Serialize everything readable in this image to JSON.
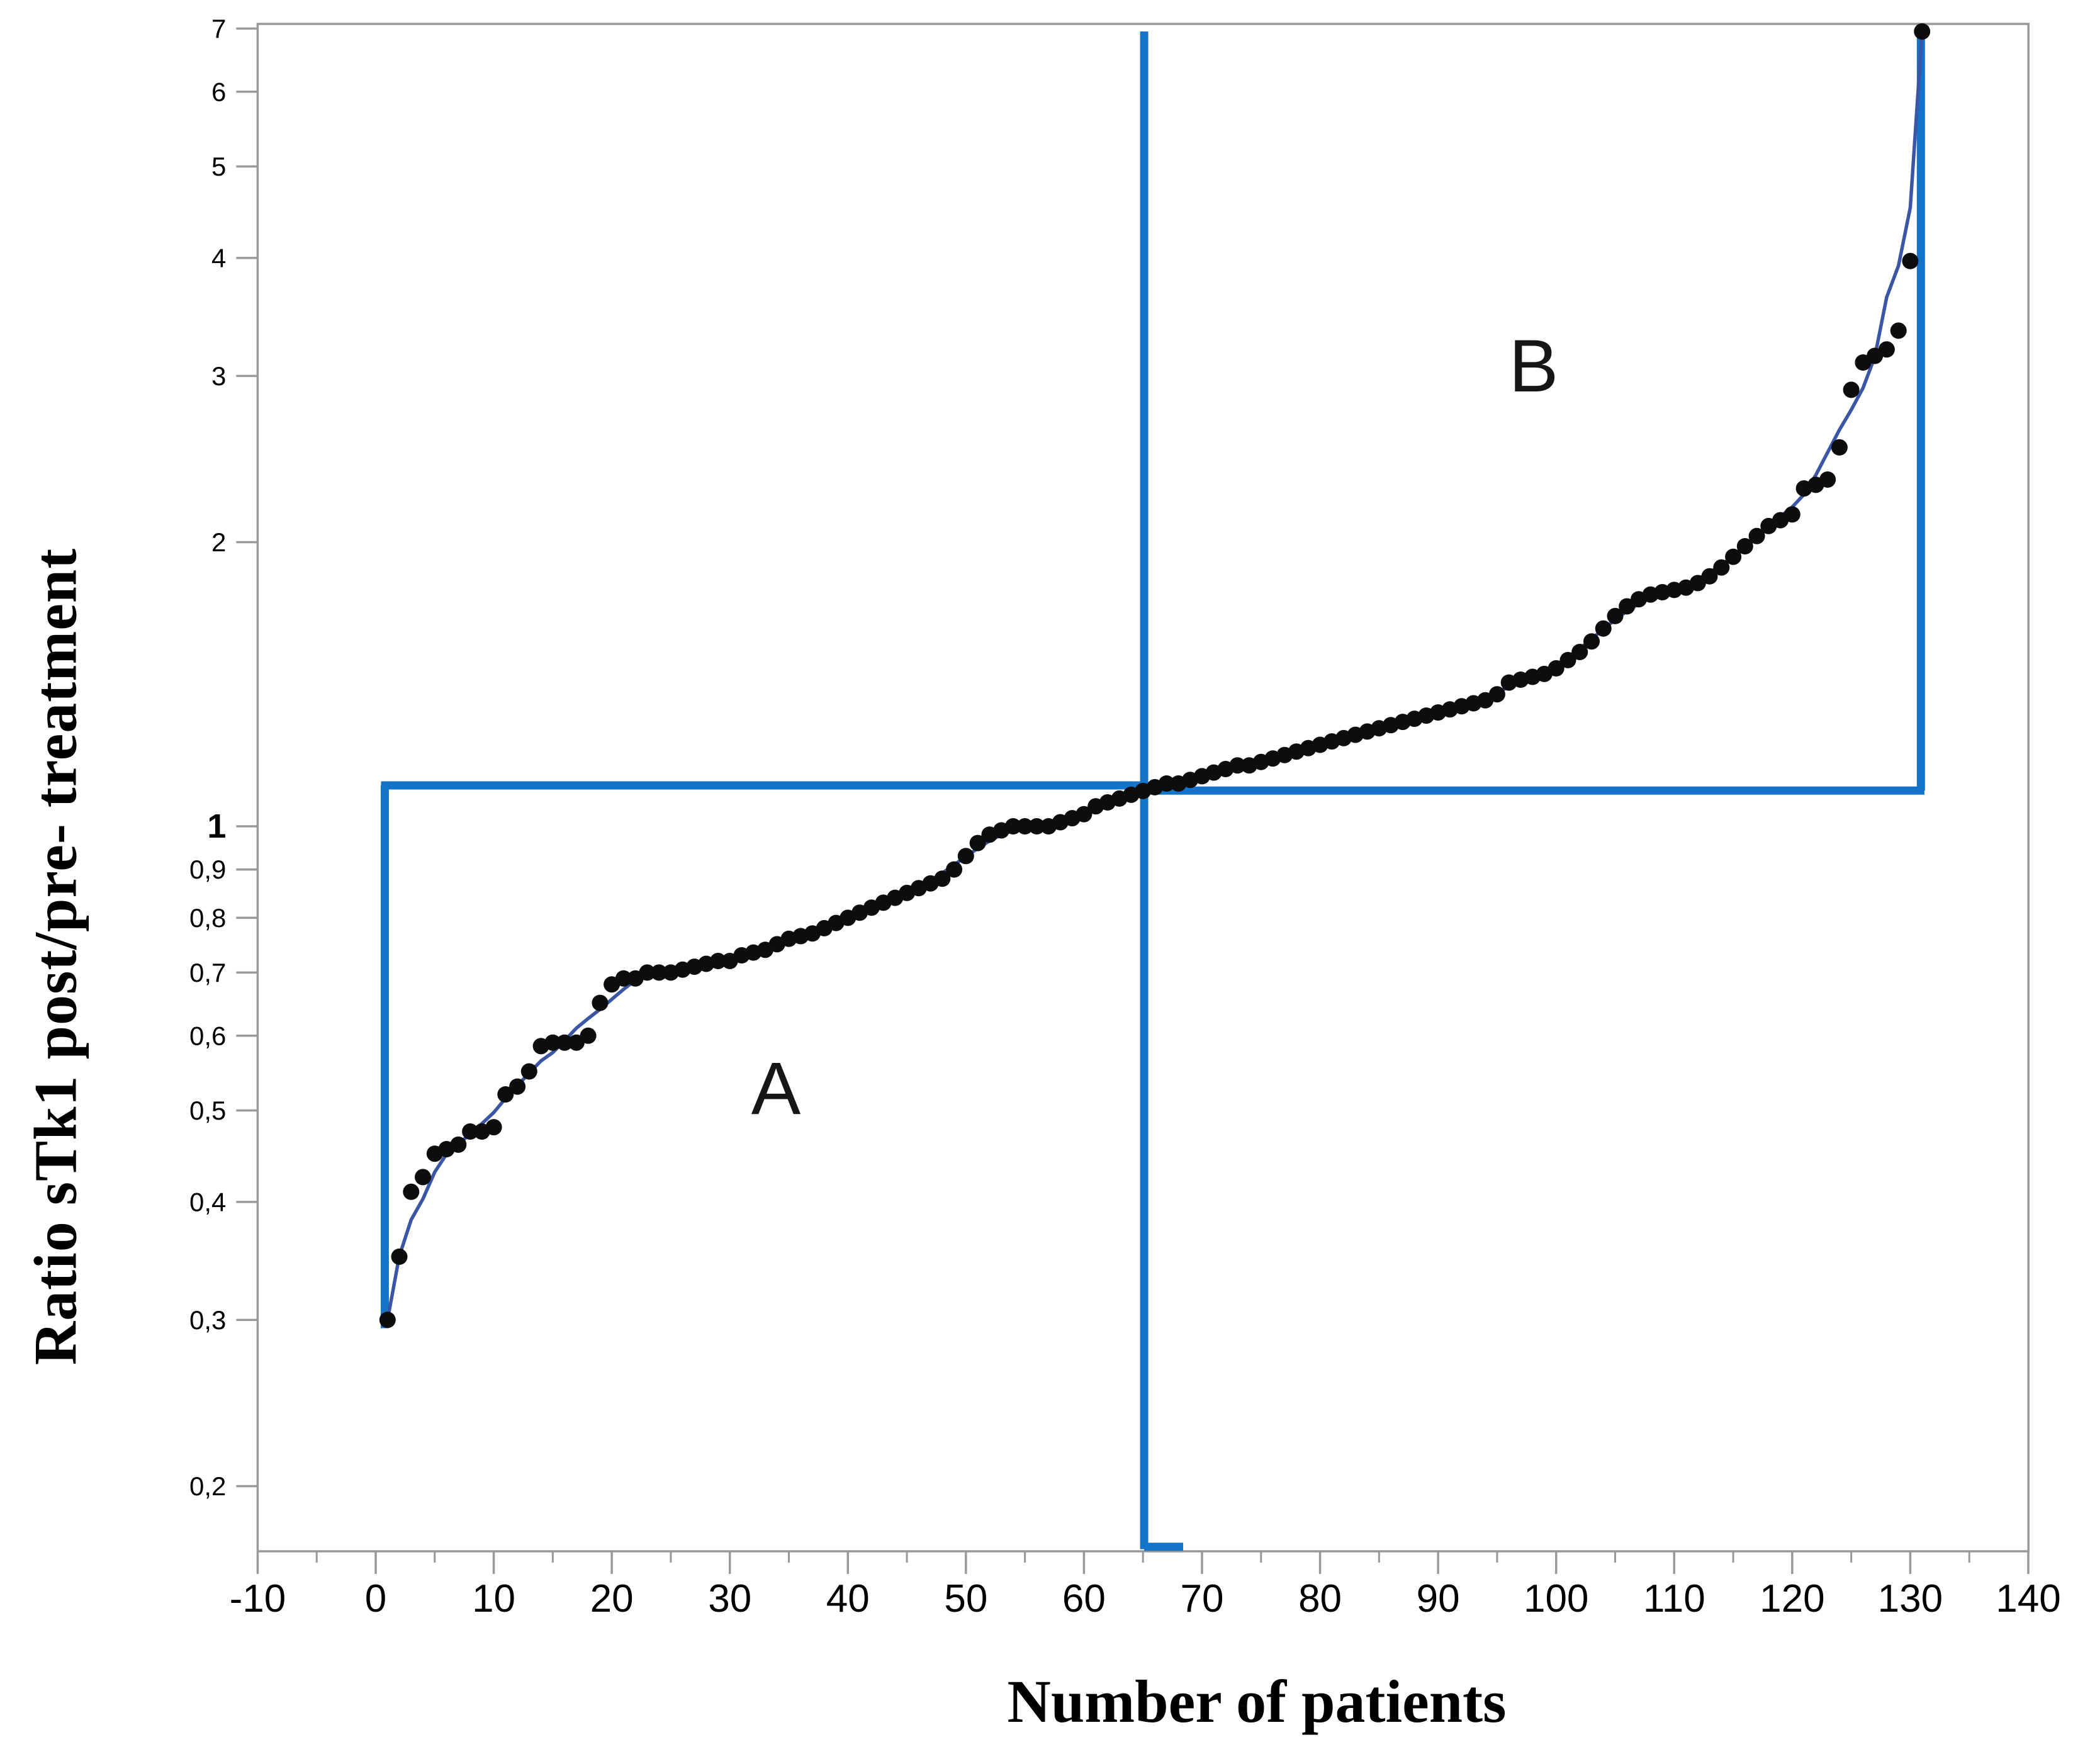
{
  "colors": {
    "background": "#ffffff",
    "annotation_blue": "#1573c9",
    "curve_blue": "#3b56a4",
    "point_black": "#0d0d0d",
    "axis_gray": "#999999",
    "text_black": "#000000"
  },
  "x_axis": {
    "label": "Number of patients",
    "tick_values": [
      -10,
      0,
      10,
      20,
      30,
      40,
      50,
      60,
      70,
      80,
      90,
      100,
      110,
      120,
      130,
      140
    ],
    "tick_labels": [
      "-10",
      "0",
      "10",
      "20",
      "30",
      "40",
      "50",
      "60",
      "70",
      "80",
      "90",
      "100",
      "110",
      "120",
      "130",
      "140"
    ],
    "minor_tick_step": 5,
    "range": [
      -10,
      140
    ]
  },
  "y_axis": {
    "label": "Ratio sTk1 post/pre- treatment",
    "scale": "log",
    "ticks": [
      {
        "value": 7,
        "label": "7"
      },
      {
        "value": 6,
        "label": "6"
      },
      {
        "value": 5,
        "label": "5"
      },
      {
        "value": 4,
        "label": "4"
      },
      {
        "value": 3,
        "label": "3"
      },
      {
        "value": 2,
        "label": "2"
      },
      {
        "value": 1,
        "label": "1"
      },
      {
        "value": 0.9,
        "label": "0,9"
      },
      {
        "value": 0.8,
        "label": "0,8"
      },
      {
        "value": 0.7,
        "label": "0,7"
      },
      {
        "value": 0.6,
        "label": "0,6"
      },
      {
        "value": 0.5,
        "label": "0,5"
      },
      {
        "value": 0.4,
        "label": "0,4"
      },
      {
        "value": 0.3,
        "label": "0,3"
      },
      {
        "value": 0.2,
        "label": "0,2"
      }
    ]
  },
  "regions": {
    "a": "A",
    "b": "B"
  },
  "chart_data": {
    "type": "scatter",
    "title": "",
    "xlabel": "Number of patients",
    "ylabel": "Ratio sTk1 post/pre- treatment",
    "y_scale": "log",
    "xlim": [
      -10,
      140
    ],
    "ylim": [
      0.17,
      7.3
    ],
    "grid": false,
    "legend": "none",
    "threshold_ratio": 1.1,
    "separator_patient": 65,
    "total_patients": 131,
    "region_labels": [
      {
        "text": "A",
        "x": 34,
        "y": 0.53
      },
      {
        "text": "B",
        "x": 98,
        "y": 3.07
      }
    ],
    "annotation_lines": [
      {
        "name": "left-vertical",
        "x1": 0.77,
        "y1": 0.294,
        "x2": 0.77,
        "y2": 1.105
      },
      {
        "name": "left-horizontal",
        "x1": 0.45,
        "y1": 1.105,
        "x2": 65.4,
        "y2": 1.105
      },
      {
        "name": "separator-vertical",
        "x1": 65.1,
        "y1": 6.95,
        "x2": 65.1,
        "y2": 0.1715
      },
      {
        "name": "separator-foot",
        "x1": 65.1,
        "y1": 0.1725,
        "x2": 68.4,
        "y2": 0.1725
      },
      {
        "name": "right-horizontal",
        "x1": 65.1,
        "y1": 1.091,
        "x2": 131.2,
        "y2": 1.091
      },
      {
        "name": "right-vertical",
        "x1": 130.9,
        "y1": 1.091,
        "x2": 130.9,
        "y2": 6.92
      }
    ],
    "series": [
      {
        "name": "sorted patient ratios",
        "fit_curve": true,
        "points": [
          [
            1,
            0.3
          ],
          [
            2,
            0.35
          ],
          [
            3,
            0.41
          ],
          [
            4,
            0.425
          ],
          [
            5,
            0.45
          ],
          [
            6,
            0.455
          ],
          [
            7,
            0.46
          ],
          [
            8,
            0.475
          ],
          [
            9,
            0.475
          ],
          [
            10,
            0.48
          ],
          [
            11,
            0.52
          ],
          [
            12,
            0.53
          ],
          [
            13,
            0.55
          ],
          [
            14,
            0.585
          ],
          [
            15,
            0.59
          ],
          [
            16,
            0.59
          ],
          [
            17,
            0.59
          ],
          [
            18,
            0.6
          ],
          [
            19,
            0.65
          ],
          [
            20,
            0.68
          ],
          [
            21,
            0.69
          ],
          [
            22,
            0.69
          ],
          [
            23,
            0.7
          ],
          [
            24,
            0.7
          ],
          [
            25,
            0.7
          ],
          [
            26,
            0.705
          ],
          [
            27,
            0.71
          ],
          [
            28,
            0.715
          ],
          [
            29,
            0.72
          ],
          [
            30,
            0.72
          ],
          [
            31,
            0.73
          ],
          [
            32,
            0.735
          ],
          [
            33,
            0.74
          ],
          [
            34,
            0.75
          ],
          [
            35,
            0.76
          ],
          [
            36,
            0.765
          ],
          [
            37,
            0.77
          ],
          [
            38,
            0.78
          ],
          [
            39,
            0.79
          ],
          [
            40,
            0.8
          ],
          [
            41,
            0.81
          ],
          [
            42,
            0.82
          ],
          [
            43,
            0.83
          ],
          [
            44,
            0.84
          ],
          [
            45,
            0.85
          ],
          [
            46,
            0.86
          ],
          [
            47,
            0.87
          ],
          [
            48,
            0.88
          ],
          [
            49,
            0.9
          ],
          [
            50,
            0.93
          ],
          [
            51,
            0.96
          ],
          [
            52,
            0.98
          ],
          [
            53,
            0.99
          ],
          [
            54,
            1.0
          ],
          [
            55,
            1.0
          ],
          [
            56,
            1.0
          ],
          [
            57,
            1.0
          ],
          [
            58,
            1.01
          ],
          [
            59,
            1.02
          ],
          [
            60,
            1.03
          ],
          [
            61,
            1.05
          ],
          [
            62,
            1.06
          ],
          [
            63,
            1.07
          ],
          [
            64,
            1.08
          ],
          [
            65,
            1.09
          ],
          [
            66,
            1.1
          ],
          [
            67,
            1.11
          ],
          [
            68,
            1.11
          ],
          [
            69,
            1.12
          ],
          [
            70,
            1.13
          ],
          [
            71,
            1.14
          ],
          [
            72,
            1.15
          ],
          [
            73,
            1.16
          ],
          [
            74,
            1.16
          ],
          [
            75,
            1.17
          ],
          [
            76,
            1.18
          ],
          [
            77,
            1.19
          ],
          [
            78,
            1.2
          ],
          [
            79,
            1.21
          ],
          [
            80,
            1.22
          ],
          [
            81,
            1.23
          ],
          [
            82,
            1.24
          ],
          [
            83,
            1.25
          ],
          [
            84,
            1.26
          ],
          [
            85,
            1.27
          ],
          [
            86,
            1.28
          ],
          [
            87,
            1.29
          ],
          [
            88,
            1.3
          ],
          [
            89,
            1.31
          ],
          [
            90,
            1.32
          ],
          [
            91,
            1.33
          ],
          [
            92,
            1.34
          ],
          [
            93,
            1.35
          ],
          [
            94,
            1.36
          ],
          [
            95,
            1.38
          ],
          [
            96,
            1.42
          ],
          [
            97,
            1.43
          ],
          [
            98,
            1.44
          ],
          [
            99,
            1.45
          ],
          [
            100,
            1.47
          ],
          [
            101,
            1.5
          ],
          [
            102,
            1.53
          ],
          [
            103,
            1.57
          ],
          [
            104,
            1.62
          ],
          [
            105,
            1.67
          ],
          [
            106,
            1.71
          ],
          [
            107,
            1.74
          ],
          [
            108,
            1.76
          ],
          [
            109,
            1.77
          ],
          [
            110,
            1.78
          ],
          [
            111,
            1.79
          ],
          [
            112,
            1.81
          ],
          [
            113,
            1.84
          ],
          [
            114,
            1.88
          ],
          [
            115,
            1.93
          ],
          [
            116,
            1.98
          ],
          [
            117,
            2.03
          ],
          [
            118,
            2.08
          ],
          [
            119,
            2.11
          ],
          [
            120,
            2.14
          ],
          [
            121,
            2.28
          ],
          [
            122,
            2.3
          ],
          [
            123,
            2.33
          ],
          [
            124,
            2.52
          ],
          [
            125,
            2.9
          ],
          [
            126,
            3.1
          ],
          [
            127,
            3.15
          ],
          [
            128,
            3.2
          ],
          [
            129,
            3.35
          ],
          [
            130,
            3.97
          ],
          [
            131,
            6.95
          ]
        ]
      }
    ]
  }
}
